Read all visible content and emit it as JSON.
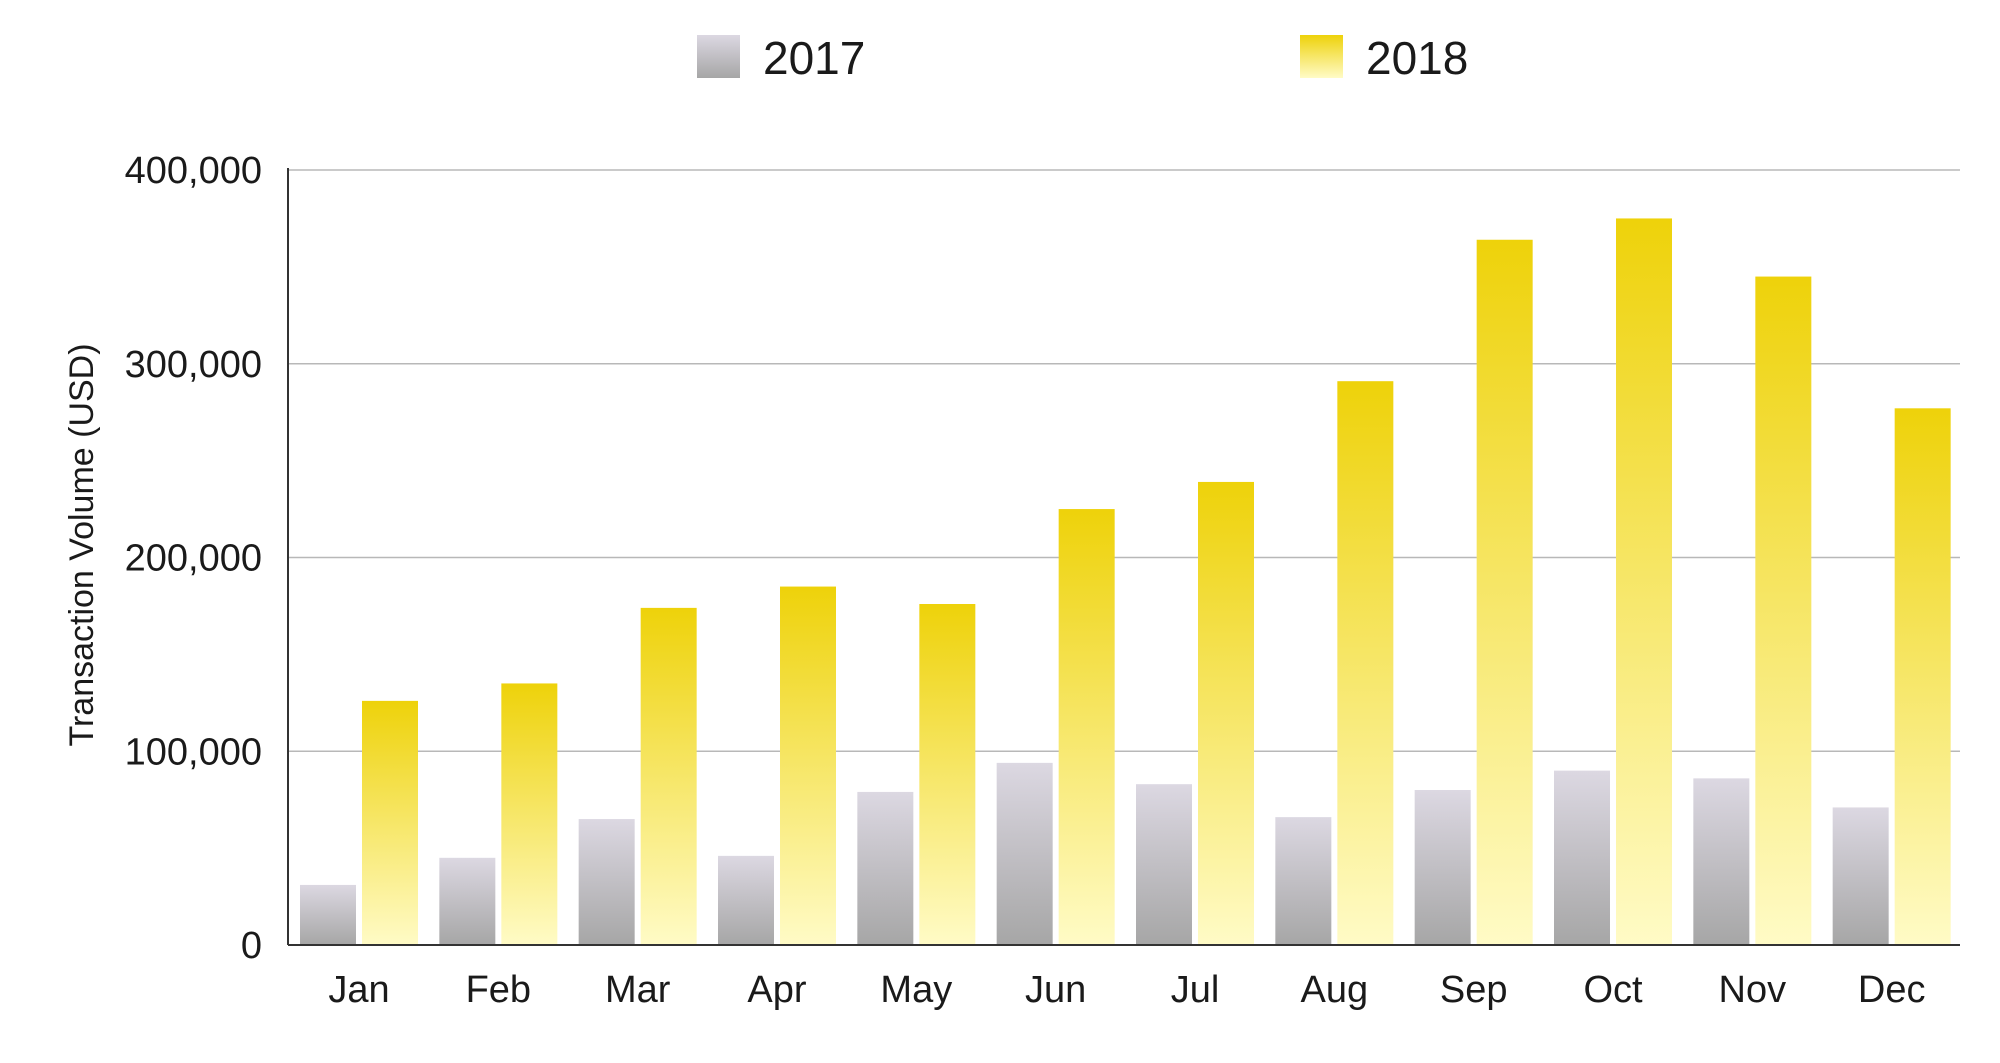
{
  "chart_data": {
    "type": "bar",
    "categories": [
      "Jan",
      "Feb",
      "Mar",
      "Apr",
      "May",
      "Jun",
      "Jul",
      "Aug",
      "Sep",
      "Oct",
      "Nov",
      "Dec"
    ],
    "series": [
      {
        "name": "2017",
        "values": [
          31000,
          45000,
          65000,
          46000,
          79000,
          94000,
          83000,
          66000,
          80000,
          90000,
          86000,
          71000
        ],
        "color_top": "#dcd8e2",
        "color_bottom": "#a6a6a6"
      },
      {
        "name": "2018",
        "values": [
          126000,
          135000,
          174000,
          185000,
          176000,
          225000,
          239000,
          291000,
          364000,
          375000,
          345000,
          277000
        ],
        "color_top": "#eed20a",
        "color_bottom": "#fffbc6"
      }
    ],
    "ylabel": "Transaction Volume (USD)",
    "xlabel": "",
    "ylim": [
      0,
      400000
    ],
    "yticks": [
      "0",
      "100,000",
      "200,000",
      "300,000",
      "400,000"
    ],
    "grid": true,
    "legend_position": "top-center"
  }
}
